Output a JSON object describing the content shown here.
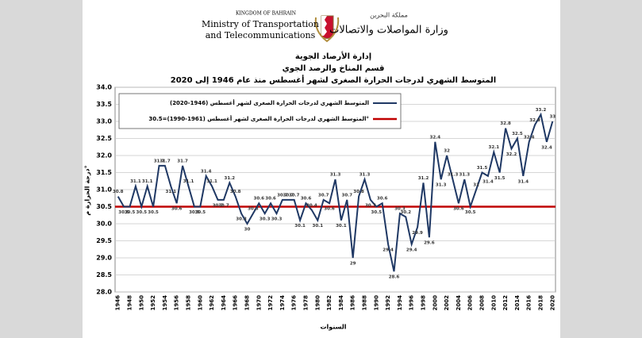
{
  "header": {
    "en_country": "KINGDOM OF BAHRAIN",
    "en_ministry_1": "Ministry of Transportation",
    "en_ministry_2": "and Telecommunications",
    "ar_country": "مملكة البحرين",
    "ar_ministry": "وزارة المواصلات والاتصالات"
  },
  "chart_data": {
    "type": "line",
    "title_lines": [
      "إدارة الأرصاد الجوية",
      "قسم المناخ والرصد الجوي",
      "المتوسط الشهري لدرجات الحرارة الصغرى لشهر أغسطس منذ عام 1946 إلى 2020"
    ],
    "y_label": "درجة الحرارة م°",
    "x_label": "السنوات",
    "categories": [
      "1946",
      null,
      "1948",
      null,
      "1950",
      null,
      "1952",
      null,
      "1954",
      null,
      "1956",
      null,
      "1958",
      null,
      "1960",
      null,
      "1962",
      null,
      "1964",
      null,
      "1966",
      null,
      "1968",
      null,
      "1970",
      null,
      "1972",
      null,
      "1974",
      null,
      "1976",
      null,
      "1978",
      null,
      "1980",
      null,
      "1982",
      null,
      "1984",
      null,
      "1986",
      null,
      "1988",
      null,
      "1990",
      null,
      "1992",
      null,
      "1994",
      null,
      "1996",
      null,
      "1998",
      null,
      "2000",
      null,
      "2002",
      null,
      "2004",
      null,
      "2006",
      null,
      "2008",
      null,
      "2010",
      null,
      "2012",
      null,
      "2014",
      null,
      "2016",
      null,
      "2018",
      null,
      "2020"
    ],
    "series": [
      {
        "name": "المتوسط الشهري لدرجات الحرارة الصغرى لشهر أغسطس (1946-2020)",
        "color": "#1f3864",
        "values": [
          30.8,
          30.5,
          30.5,
          31.1,
          30.5,
          31.1,
          30.5,
          31.7,
          31.7,
          31.1,
          30.6,
          31.7,
          31.1,
          30.5,
          30.5,
          31.4,
          31.1,
          30.7,
          30.7,
          31.2,
          30.8,
          30.3,
          30.0,
          30.3,
          30.6,
          30.3,
          30.6,
          30.3,
          30.7,
          30.7,
          30.7,
          30.1,
          30.6,
          30.4,
          30.1,
          30.7,
          30.6,
          31.3,
          30.1,
          30.7,
          29.0,
          30.8,
          31.3,
          30.7,
          30.5,
          30.6,
          29.4,
          28.6,
          30.3,
          30.2,
          29.4,
          29.9,
          31.2,
          29.6,
          32.4,
          31.3,
          32.0,
          31.3,
          30.6,
          31.3,
          30.5,
          31.0,
          31.5,
          31.4,
          32.1,
          31.5,
          32.8,
          32.2,
          32.5,
          31.4,
          32.4,
          32.9,
          33.2,
          32.4,
          33.0
        ]
      }
    ],
    "reference": {
      "name": "المتوسط الشهري لدرجات الحرارة الصغرى لشهر أغسطس (1961-1990)=30.5°",
      "value": 30.5,
      "color": "#c00000"
    },
    "ylim": [
      28.0,
      34.0
    ],
    "yticks": [
      {
        "value": 28,
        "label": "28.0"
      },
      {
        "value": 28.5,
        "label": "28.5"
      },
      {
        "value": 29,
        "label": "29.0"
      },
      {
        "value": 29.5,
        "label": "29.5"
      },
      {
        "value": 30,
        "label": "30.0"
      },
      {
        "value": 30.5,
        "label": "30.5"
      },
      {
        "value": 31,
        "label": "31.0"
      },
      {
        "value": 31.5,
        "label": "31.5"
      },
      {
        "value": 32,
        "label": "32.0"
      },
      {
        "value": 32.5,
        "label": "32.5"
      },
      {
        "value": 33,
        "label": "33.0"
      },
      {
        "value": 33.5,
        "label": "33.5"
      },
      {
        "value": 34,
        "label": "34.0"
      }
    ],
    "grid": true
  }
}
